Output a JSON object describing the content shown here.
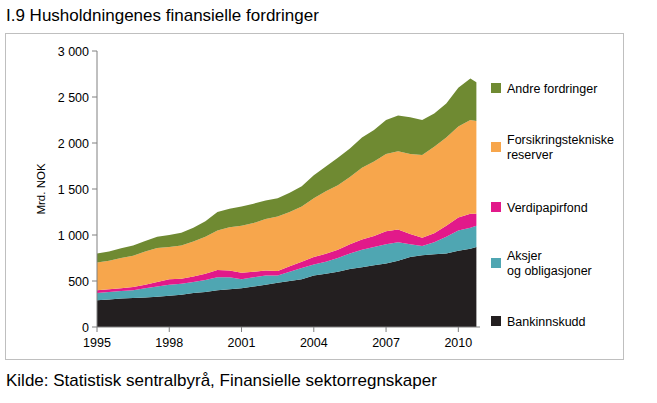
{
  "chart_data": {
    "type": "area",
    "title": "I.9 Husholdningenes finansielle fordringer",
    "subtitle": "Kilde: Statistisk sentralbyrå, Finansielle sektorregnskaper",
    "y_label": "Mrd. NOK",
    "stacked": true,
    "grid": false,
    "legend": "right",
    "x": [
      1995,
      1995.5,
      1996,
      1996.5,
      1997,
      1997.5,
      1998,
      1998.5,
      1999,
      1999.5,
      2000,
      2000.5,
      2001,
      2001.5,
      2002,
      2002.5,
      2003,
      2003.5,
      2004,
      2004.5,
      2005,
      2005.5,
      2006,
      2006.5,
      2007,
      2007.5,
      2008,
      2008.5,
      2009,
      2009.5,
      2010,
      2010.5,
      2010.75
    ],
    "xlim": [
      1995,
      2010.9
    ],
    "xticks": [
      1995,
      1998,
      2001,
      2004,
      2007,
      2010
    ],
    "ylim": [
      0,
      3000
    ],
    "yticks": [
      0,
      500,
      {
        "value": 1000,
        "label": "1 000"
      },
      {
        "value": 1500,
        "label": "1 500"
      },
      {
        "value": 2000,
        "label": "2 000"
      },
      {
        "value": 2500,
        "label": "2 500"
      },
      {
        "value": 3000,
        "label": "3 000"
      }
    ],
    "series": [
      {
        "name": "Bankinnskudd",
        "color": "#231f20",
        "values": [
          290,
          300,
          310,
          315,
          320,
          330,
          340,
          350,
          370,
          380,
          400,
          410,
          420,
          440,
          460,
          480,
          500,
          520,
          560,
          580,
          600,
          630,
          650,
          670,
          690,
          720,
          760,
          780,
          790,
          800,
          830,
          850,
          870
        ]
      },
      {
        "name": "Aksjer og obligasjoner",
        "color": "#4fa6b2",
        "values": [
          80,
          80,
          80,
          85,
          100,
          110,
          120,
          120,
          120,
          130,
          140,
          130,
          100,
          100,
          100,
          80,
          100,
          120,
          120,
          130,
          150,
          170,
          190,
          200,
          210,
          200,
          140,
          100,
          130,
          180,
          220,
          230,
          230
        ]
      },
      {
        "name": "Verdipapirfond",
        "color": "#e2198a",
        "values": [
          30,
          30,
          30,
          35,
          40,
          50,
          60,
          55,
          60,
          70,
          80,
          75,
          70,
          60,
          55,
          50,
          60,
          70,
          80,
          85,
          90,
          100,
          110,
          120,
          140,
          140,
          110,
          90,
          100,
          120,
          140,
          150,
          130
        ]
      },
      {
        "name": "Forsikringstekniske reserver",
        "color": "#f7a64c",
        "values": [
          300,
          310,
          330,
          340,
          360,
          370,
          350,
          360,
          380,
          400,
          430,
          470,
          510,
          530,
          560,
          590,
          590,
          600,
          640,
          680,
          700,
          730,
          780,
          810,
          840,
          850,
          870,
          900,
          940,
          960,
          990,
          1020,
          1010
        ]
      },
      {
        "name": "Andre fordringer",
        "color": "#6f8a32",
        "values": [
          100,
          100,
          105,
          110,
          115,
          120,
          130,
          140,
          150,
          170,
          200,
          200,
          210,
          210,
          200,
          200,
          210,
          220,
          250,
          270,
          300,
          310,
          330,
          340,
          370,
          390,
          400,
          380,
          360,
          370,
          420,
          450,
          420
        ]
      }
    ]
  }
}
